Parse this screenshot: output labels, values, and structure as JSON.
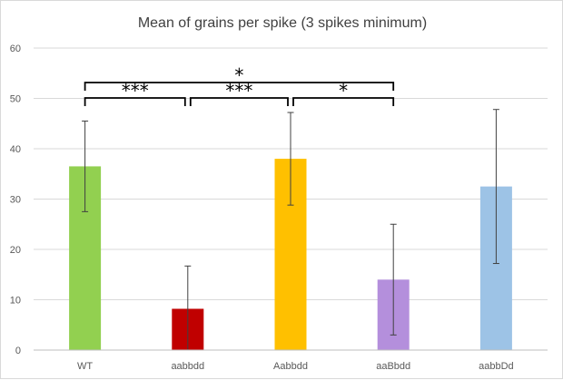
{
  "chart_data": {
    "type": "bar",
    "title": "Mean of grains per spike (3 spikes minimum)",
    "xlabel": "",
    "ylabel": "",
    "ylim": [
      0,
      60
    ],
    "yticks": [
      0,
      10,
      20,
      30,
      40,
      50,
      60
    ],
    "categories": [
      "WT",
      "aabbdd",
      "Aabbdd",
      "aaBbdd",
      "aabbDd"
    ],
    "values": [
      36.5,
      8.2,
      38.0,
      14.0,
      32.5
    ],
    "errors": [
      9.0,
      8.5,
      9.2,
      11.0,
      15.3
    ],
    "colors": [
      "#92d050",
      "#c00000",
      "#ffc000",
      "#b48fdc",
      "#9dc3e6"
    ],
    "gridlines": true,
    "significance": [
      {
        "from": 0,
        "to": 1,
        "level": 1,
        "label": "***"
      },
      {
        "from": 1,
        "to": 2,
        "level": 1,
        "label": "***"
      },
      {
        "from": 2,
        "to": 3,
        "level": 1,
        "label": "*"
      },
      {
        "from": 0,
        "to": 3,
        "level": 2,
        "label": "*"
      }
    ]
  }
}
